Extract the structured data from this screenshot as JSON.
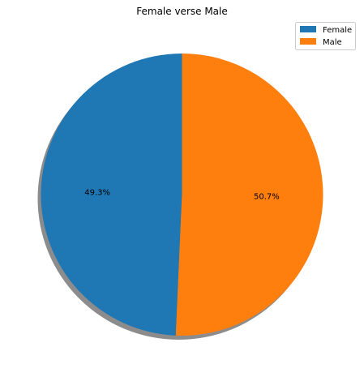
{
  "chart_data": {
    "type": "pie",
    "title": "Female verse Male",
    "categories": [
      "Female",
      "Male"
    ],
    "values": [
      49.3,
      50.7
    ],
    "labels": [
      "49.3%",
      "50.7%"
    ],
    "colors": [
      "#1f77b4",
      "#ff7f0e"
    ],
    "start_angle_deg": 90,
    "direction": "counterclockwise",
    "shadow": true,
    "legend": {
      "placement": "top-right",
      "entries": [
        "Female",
        "Male"
      ]
    }
  }
}
